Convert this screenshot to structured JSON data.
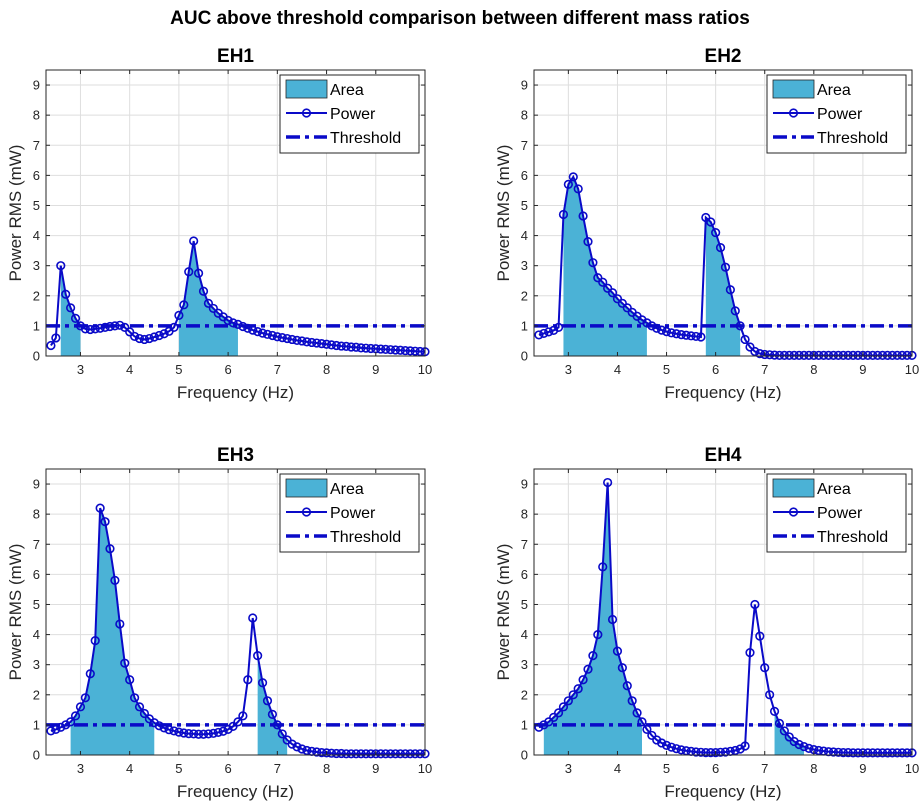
{
  "figure": {
    "title": "AUC above threshold comparison between different mass ratios"
  },
  "colors": {
    "area": "#4bb2d6",
    "power": "#0a0ac8",
    "threshold": "#0a0ac8",
    "grid": "#dedede",
    "axis": "#262626"
  },
  "legend": {
    "area": "Area",
    "power": "Power",
    "threshold": "Threshold",
    "placement": "top-right"
  },
  "chart_data": [
    {
      "type": "area",
      "title": "EH1",
      "xlabel": "Frequency (Hz)",
      "ylabel": "Power RMS (mW)",
      "xlim": [
        2.3,
        10
      ],
      "ylim": [
        0,
        9.5
      ],
      "xticks": [
        3,
        4,
        5,
        6,
        7,
        8,
        9,
        10
      ],
      "yticks": [
        0,
        1,
        2,
        3,
        4,
        5,
        6,
        7,
        8,
        9
      ],
      "grid": true,
      "threshold": 1.0,
      "series": [
        {
          "name": "Power",
          "x": [
            2.4,
            2.5,
            2.6,
            2.7,
            2.8,
            2.9,
            3.0,
            3.1,
            3.2,
            3.3,
            3.4,
            3.5,
            3.6,
            3.7,
            3.8,
            3.9,
            4.0,
            4.1,
            4.2,
            4.3,
            4.4,
            4.5,
            4.6,
            4.7,
            4.8,
            4.9,
            5.0,
            5.1,
            5.2,
            5.3,
            5.4,
            5.5,
            5.6,
            5.7,
            5.8,
            5.9,
            6.0,
            6.1,
            6.2,
            6.3,
            6.4,
            6.5,
            6.6,
            6.7,
            6.8,
            6.9,
            7.0,
            7.1,
            7.2,
            7.3,
            7.4,
            7.5,
            7.6,
            7.7,
            7.8,
            7.9,
            8.0,
            8.1,
            8.2,
            8.3,
            8.4,
            8.5,
            8.6,
            8.7,
            8.8,
            8.9,
            9.0,
            9.1,
            9.2,
            9.3,
            9.4,
            9.5,
            9.6,
            9.7,
            9.8,
            9.9,
            10.0
          ],
          "y": [
            0.35,
            0.6,
            3.0,
            2.05,
            1.6,
            1.25,
            1.0,
            0.9,
            0.88,
            0.9,
            0.92,
            0.95,
            0.98,
            1.0,
            1.02,
            0.95,
            0.8,
            0.65,
            0.58,
            0.55,
            0.58,
            0.63,
            0.68,
            0.74,
            0.82,
            0.95,
            1.35,
            1.7,
            2.8,
            3.82,
            2.75,
            2.15,
            1.75,
            1.58,
            1.42,
            1.3,
            1.18,
            1.1,
            1.05,
            0.98,
            0.92,
            0.86,
            0.81,
            0.76,
            0.72,
            0.68,
            0.64,
            0.61,
            0.58,
            0.55,
            0.52,
            0.5,
            0.47,
            0.45,
            0.43,
            0.41,
            0.39,
            0.37,
            0.35,
            0.33,
            0.32,
            0.3,
            0.29,
            0.27,
            0.26,
            0.25,
            0.24,
            0.23,
            0.22,
            0.21,
            0.2,
            0.19,
            0.18,
            0.17,
            0.16,
            0.15,
            0.14
          ]
        }
      ],
      "area_ranges": [
        [
          2.6,
          3.0
        ],
        [
          5.0,
          6.2
        ]
      ]
    },
    {
      "type": "area",
      "title": "EH2",
      "xlabel": "Frequency (Hz)",
      "ylabel": "Power RMS (mW)",
      "xlim": [
        2.3,
        10
      ],
      "ylim": [
        0,
        9.5
      ],
      "xticks": [
        3,
        4,
        5,
        6,
        7,
        8,
        9,
        10
      ],
      "yticks": [
        0,
        1,
        2,
        3,
        4,
        5,
        6,
        7,
        8,
        9
      ],
      "grid": true,
      "threshold": 1.0,
      "series": [
        {
          "name": "Power",
          "x": [
            2.4,
            2.5,
            2.6,
            2.7,
            2.8,
            2.9,
            3.0,
            3.1,
            3.2,
            3.3,
            3.4,
            3.5,
            3.6,
            3.7,
            3.8,
            3.9,
            4.0,
            4.1,
            4.2,
            4.3,
            4.4,
            4.5,
            4.6,
            4.7,
            4.8,
            4.9,
            5.0,
            5.1,
            5.2,
            5.3,
            5.4,
            5.5,
            5.6,
            5.7,
            5.8,
            5.9,
            6.0,
            6.1,
            6.2,
            6.3,
            6.4,
            6.5,
            6.6,
            6.7,
            6.8,
            6.9,
            7.0,
            7.1,
            7.2,
            7.3,
            7.4,
            7.5,
            7.6,
            7.7,
            7.8,
            7.9,
            8.0,
            8.1,
            8.2,
            8.3,
            8.4,
            8.5,
            8.6,
            8.7,
            8.8,
            8.9,
            9.0,
            9.1,
            9.2,
            9.3,
            9.4,
            9.5,
            9.6,
            9.7,
            9.8,
            9.9,
            10.0
          ],
          "y": [
            0.7,
            0.75,
            0.8,
            0.85,
            0.95,
            4.7,
            5.7,
            5.95,
            5.55,
            4.65,
            3.8,
            3.1,
            2.6,
            2.45,
            2.25,
            2.1,
            1.9,
            1.75,
            1.6,
            1.45,
            1.32,
            1.2,
            1.1,
            1.0,
            0.92,
            0.86,
            0.81,
            0.77,
            0.74,
            0.71,
            0.69,
            0.67,
            0.65,
            0.63,
            4.6,
            4.45,
            4.1,
            3.6,
            2.95,
            2.2,
            1.5,
            1.0,
            0.55,
            0.3,
            0.15,
            0.08,
            0.05,
            0.04,
            0.03,
            0.02,
            0.02,
            0.02,
            0.02,
            0.02,
            0.02,
            0.02,
            0.02,
            0.02,
            0.02,
            0.02,
            0.02,
            0.02,
            0.02,
            0.02,
            0.02,
            0.02,
            0.02,
            0.02,
            0.02,
            0.02,
            0.02,
            0.02,
            0.02,
            0.02,
            0.02,
            0.02,
            0.02
          ]
        }
      ],
      "area_ranges": [
        [
          2.9,
          4.6
        ],
        [
          5.8,
          6.5
        ]
      ]
    },
    {
      "type": "area",
      "title": "EH3",
      "xlabel": "Frequency (Hz)",
      "ylabel": "Power RMS (mW)",
      "xlim": [
        2.3,
        10
      ],
      "ylim": [
        0,
        9.5
      ],
      "xticks": [
        3,
        4,
        5,
        6,
        7,
        8,
        9,
        10
      ],
      "yticks": [
        0,
        1,
        2,
        3,
        4,
        5,
        6,
        7,
        8,
        9
      ],
      "grid": true,
      "threshold": 1.0,
      "series": [
        {
          "name": "Power",
          "x": [
            2.4,
            2.5,
            2.6,
            2.7,
            2.8,
            2.9,
            3.0,
            3.1,
            3.2,
            3.3,
            3.4,
            3.5,
            3.6,
            3.7,
            3.8,
            3.9,
            4.0,
            4.1,
            4.2,
            4.3,
            4.4,
            4.5,
            4.6,
            4.7,
            4.8,
            4.9,
            5.0,
            5.1,
            5.2,
            5.3,
            5.4,
            5.5,
            5.6,
            5.7,
            5.8,
            5.9,
            6.0,
            6.1,
            6.2,
            6.3,
            6.4,
            6.5,
            6.6,
            6.7,
            6.8,
            6.9,
            7.0,
            7.1,
            7.2,
            7.3,
            7.4,
            7.5,
            7.6,
            7.7,
            7.8,
            7.9,
            8.0,
            8.1,
            8.2,
            8.3,
            8.4,
            8.5,
            8.6,
            8.7,
            8.8,
            8.9,
            9.0,
            9.1,
            9.2,
            9.3,
            9.4,
            9.5,
            9.6,
            9.7,
            9.8,
            9.9,
            10.0
          ],
          "y": [
            0.8,
            0.85,
            0.92,
            1.0,
            1.1,
            1.3,
            1.6,
            1.9,
            2.7,
            3.8,
            8.2,
            7.75,
            6.85,
            5.8,
            4.35,
            3.05,
            2.5,
            1.9,
            1.6,
            1.38,
            1.2,
            1.07,
            0.97,
            0.9,
            0.84,
            0.8,
            0.76,
            0.73,
            0.71,
            0.7,
            0.69,
            0.69,
            0.7,
            0.72,
            0.75,
            0.79,
            0.85,
            0.95,
            1.1,
            1.3,
            2.5,
            4.55,
            3.3,
            2.4,
            1.8,
            1.35,
            1.0,
            0.7,
            0.5,
            0.36,
            0.27,
            0.2,
            0.15,
            0.12,
            0.1,
            0.08,
            0.07,
            0.06,
            0.05,
            0.05,
            0.04,
            0.04,
            0.04,
            0.04,
            0.04,
            0.04,
            0.04,
            0.04,
            0.04,
            0.04,
            0.04,
            0.04,
            0.04,
            0.04,
            0.04,
            0.04,
            0.04
          ]
        }
      ],
      "area_ranges": [
        [
          2.8,
          4.5
        ],
        [
          6.6,
          7.2
        ]
      ]
    },
    {
      "type": "area",
      "title": "EH4",
      "xlabel": "Frequency (Hz)",
      "ylabel": "Power RMS (mW)",
      "xlim": [
        2.3,
        10
      ],
      "ylim": [
        0,
        9.5
      ],
      "xticks": [
        3,
        4,
        5,
        6,
        7,
        8,
        9,
        10
      ],
      "yticks": [
        0,
        1,
        2,
        3,
        4,
        5,
        6,
        7,
        8,
        9
      ],
      "grid": true,
      "threshold": 1.0,
      "series": [
        {
          "name": "Power",
          "x": [
            2.4,
            2.5,
            2.6,
            2.7,
            2.8,
            2.9,
            3.0,
            3.1,
            3.2,
            3.3,
            3.4,
            3.5,
            3.6,
            3.7,
            3.8,
            3.9,
            4.0,
            4.1,
            4.2,
            4.3,
            4.4,
            4.5,
            4.6,
            4.7,
            4.8,
            4.9,
            5.0,
            5.1,
            5.2,
            5.3,
            5.4,
            5.5,
            5.6,
            5.7,
            5.8,
            5.9,
            6.0,
            6.1,
            6.2,
            6.3,
            6.4,
            6.5,
            6.6,
            6.7,
            6.8,
            6.9,
            7.0,
            7.1,
            7.2,
            7.3,
            7.4,
            7.5,
            7.6,
            7.7,
            7.8,
            7.9,
            8.0,
            8.1,
            8.2,
            8.3,
            8.4,
            8.5,
            8.6,
            8.7,
            8.8,
            8.9,
            9.0,
            9.1,
            9.2,
            9.3,
            9.4,
            9.5,
            9.6,
            9.7,
            9.8,
            9.9,
            10.0
          ],
          "y": [
            0.92,
            1.0,
            1.1,
            1.25,
            1.4,
            1.6,
            1.8,
            2.0,
            2.2,
            2.5,
            2.85,
            3.3,
            4.0,
            6.25,
            9.05,
            4.5,
            3.45,
            2.9,
            2.3,
            1.8,
            1.4,
            1.1,
            0.85,
            0.65,
            0.5,
            0.4,
            0.32,
            0.26,
            0.21,
            0.17,
            0.14,
            0.12,
            0.1,
            0.09,
            0.08,
            0.08,
            0.08,
            0.09,
            0.1,
            0.12,
            0.15,
            0.2,
            0.3,
            3.4,
            5.0,
            3.95,
            2.9,
            2.0,
            1.45,
            1.05,
            0.8,
            0.6,
            0.45,
            0.35,
            0.28,
            0.22,
            0.18,
            0.15,
            0.13,
            0.11,
            0.1,
            0.09,
            0.08,
            0.08,
            0.07,
            0.07,
            0.07,
            0.07,
            0.07,
            0.07,
            0.07,
            0.07,
            0.07,
            0.07,
            0.07,
            0.07,
            0.07
          ]
        }
      ],
      "area_ranges": [
        [
          2.5,
          4.5
        ],
        [
          7.2,
          7.8
        ]
      ]
    }
  ]
}
